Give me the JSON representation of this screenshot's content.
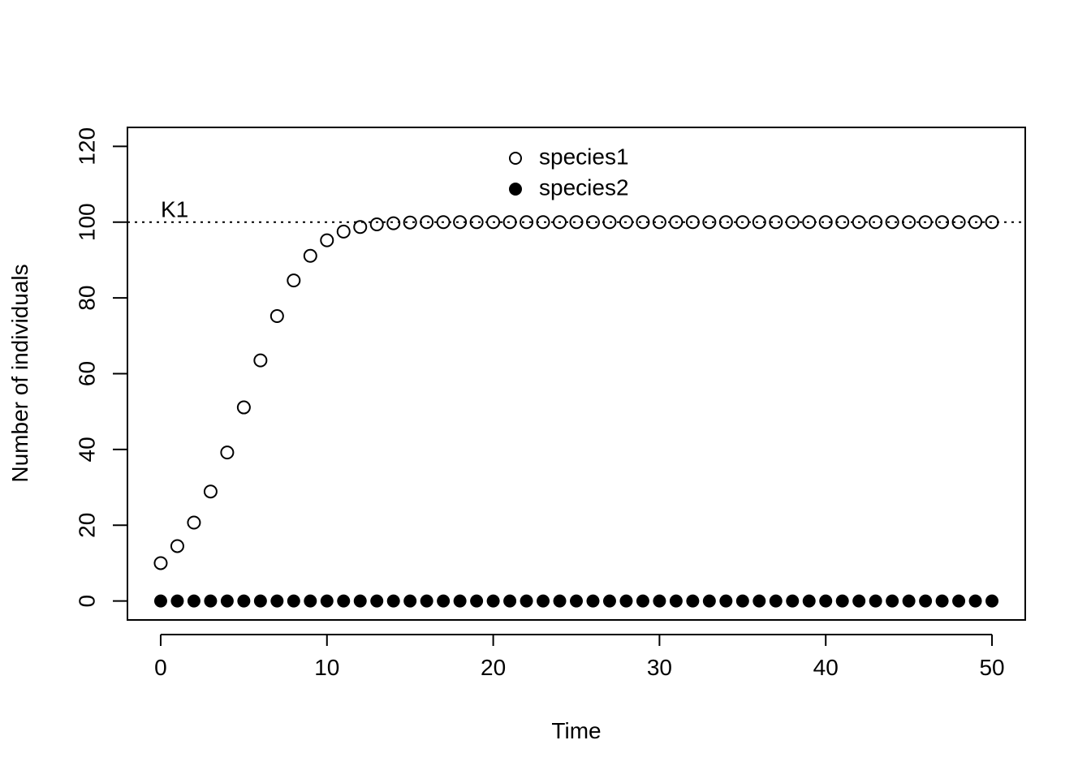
{
  "chart_data": {
    "type": "scatter",
    "title": "",
    "xlabel": "Time",
    "ylabel": "Number of individuals",
    "xlim": [
      -2,
      52
    ],
    "ylim": [
      -5,
      125
    ],
    "x_ticks": [
      0,
      10,
      20,
      30,
      40,
      50
    ],
    "y_ticks": [
      0,
      20,
      40,
      60,
      80,
      100,
      120
    ],
    "grid": false,
    "legend_position": "top-center",
    "x": [
      0,
      1,
      2,
      3,
      4,
      5,
      6,
      7,
      8,
      9,
      10,
      11,
      12,
      13,
      14,
      15,
      16,
      17,
      18,
      19,
      20,
      21,
      22,
      23,
      24,
      25,
      26,
      27,
      28,
      29,
      30,
      31,
      32,
      33,
      34,
      35,
      36,
      37,
      38,
      39,
      40,
      41,
      42,
      43,
      44,
      45,
      46,
      47,
      48,
      49,
      50
    ],
    "series": [
      {
        "name": "species1",
        "marker": "open-circle",
        "values": [
          10,
          14.5,
          20.7,
          28.9,
          39.2,
          51.1,
          63.5,
          75.2,
          84.6,
          91.1,
          95.2,
          97.5,
          98.7,
          99.4,
          99.7,
          99.9,
          100,
          100,
          100,
          100,
          100,
          100,
          100,
          100,
          100,
          100,
          100,
          100,
          100,
          100,
          100,
          100,
          100,
          100,
          100,
          100,
          100,
          100,
          100,
          100,
          100,
          100,
          100,
          100,
          100,
          100,
          100,
          100,
          100,
          100,
          100
        ]
      },
      {
        "name": "species2",
        "marker": "filled-circle",
        "values": [
          0,
          0,
          0,
          0,
          0,
          0,
          0,
          0,
          0,
          0,
          0,
          0,
          0,
          0,
          0,
          0,
          0,
          0,
          0,
          0,
          0,
          0,
          0,
          0,
          0,
          0,
          0,
          0,
          0,
          0,
          0,
          0,
          0,
          0,
          0,
          0,
          0,
          0,
          0,
          0,
          0,
          0,
          0,
          0,
          0,
          0,
          0,
          0,
          0,
          0,
          0
        ]
      }
    ],
    "reference_lines": [
      {
        "orientation": "horizontal",
        "y": 100,
        "style": "dotted",
        "label": "K1"
      }
    ]
  }
}
